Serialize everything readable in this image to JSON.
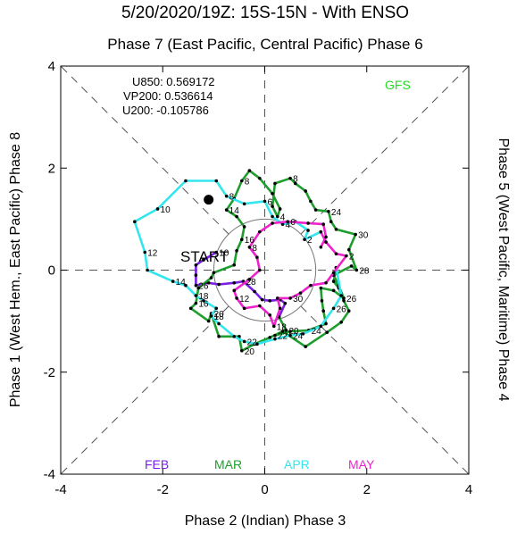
{
  "title": "5/20/2020/19Z: 15S-15N - With ENSO",
  "subtitle": "Phase 7 (East Pacific, Central Pacific) Phase 6",
  "xlabel": "Phase 2 (Indian) Phase 3",
  "ylabel_left": "Phase 1 (West Hem., East Pacific) Phase 8",
  "ylabel_right": "Phase 5 (West Pacific, Maritime) Phase 4",
  "stats": {
    "u850": "U850: 0.569172",
    "vp200": "VP200: 0.536614",
    "u200": "U200: -0.105786"
  },
  "model_label": "GFS",
  "start_label": "START",
  "colors": {
    "feb": "#7a1fe6",
    "mar": "#1e9e2e",
    "apr": "#33e6ee",
    "may": "#ee22cc",
    "forecast": "#22dd22"
  },
  "chart_data": {
    "type": "line",
    "xlim": [
      -4,
      4
    ],
    "ylim": [
      -4,
      4
    ],
    "xticks": [
      "-4",
      "-2",
      "0",
      "2",
      "4"
    ],
    "yticks": [
      "-4",
      "-2",
      "0",
      "2",
      "4"
    ],
    "unit_circle_radius": 1,
    "series": [
      {
        "name": "FEB",
        "points": [
          [
            -0.95,
            0.35,
            "10"
          ],
          [
            -1.2,
            0.2,
            ""
          ],
          [
            -1.35,
            0.1,
            ""
          ],
          [
            -1.35,
            -0.1,
            ""
          ],
          [
            -1.35,
            -0.3,
            "26"
          ],
          [
            -1.1,
            -0.25,
            ""
          ],
          [
            -0.9,
            -0.28,
            ""
          ],
          [
            -0.6,
            -0.25,
            ""
          ],
          [
            -0.42,
            -0.22,
            "28"
          ],
          [
            -0.2,
            -0.42,
            ""
          ],
          [
            -0.05,
            -0.58,
            ""
          ],
          [
            0.1,
            -0.6,
            ""
          ],
          [
            0.3,
            -0.58,
            ""
          ],
          [
            0.4,
            -0.65,
            ""
          ],
          [
            0.28,
            -0.92,
            ""
          ]
        ]
      },
      {
        "name": "MAR",
        "points": [
          [
            0.28,
            -0.92,
            ""
          ],
          [
            0.42,
            -1.18,
            "20"
          ],
          [
            0.2,
            -1.28,
            "22"
          ],
          [
            0.5,
            -1.2,
            ""
          ],
          [
            0.86,
            -1.18,
            "24"
          ],
          [
            1.2,
            -1.05,
            ""
          ],
          [
            1.15,
            -0.8,
            ""
          ],
          [
            1.12,
            -0.6,
            ""
          ],
          [
            1.1,
            -0.35,
            ""
          ],
          [
            1.35,
            -0.4,
            ""
          ],
          [
            1.55,
            -0.55,
            "26"
          ],
          [
            1.45,
            -0.3,
            ""
          ],
          [
            1.35,
            -0.1,
            ""
          ],
          [
            1.7,
            0.08,
            ""
          ],
          [
            1.8,
            0.0,
            "28"
          ],
          [
            1.65,
            0.4,
            ""
          ],
          [
            1.78,
            0.7,
            "30"
          ],
          [
            1.4,
            0.8,
            ""
          ],
          [
            1.3,
            0.95,
            ""
          ],
          [
            1.25,
            1.15,
            "24"
          ],
          [
            1.0,
            1.18,
            ""
          ],
          [
            0.9,
            1.35,
            ""
          ],
          [
            0.8,
            1.55,
            ""
          ],
          [
            0.6,
            1.7,
            ""
          ],
          [
            0.5,
            1.8,
            "8"
          ],
          [
            0.2,
            1.7,
            ""
          ],
          [
            0.15,
            1.25,
            ""
          ],
          [
            0.25,
            1.05,
            "4"
          ],
          [
            0.3,
            1.2,
            ""
          ],
          [
            0.15,
            1.5,
            ""
          ],
          [
            -0.1,
            1.8,
            ""
          ],
          [
            -0.3,
            1.95,
            ""
          ],
          [
            -0.45,
            1.75,
            "8"
          ],
          [
            -0.6,
            1.4,
            ""
          ],
          [
            -0.75,
            1.18,
            "14"
          ],
          [
            -0.55,
            1.05,
            ""
          ],
          [
            -0.4,
            0.85,
            ""
          ],
          [
            -0.45,
            0.6,
            "16"
          ],
          [
            -0.55,
            0.38,
            ""
          ],
          [
            -0.6,
            0.1,
            ""
          ],
          [
            -1.0,
            -0.05,
            ""
          ],
          [
            -1.05,
            -0.15,
            ""
          ],
          [
            -1.3,
            -0.35,
            ""
          ],
          [
            -1.35,
            -0.65,
            "16"
          ],
          [
            -1.45,
            -0.75,
            ""
          ],
          [
            -1.1,
            -1.0,
            ""
          ],
          [
            -1.05,
            -0.85,
            "20"
          ],
          [
            -0.9,
            -1.3,
            ""
          ],
          [
            -0.5,
            -1.3,
            ""
          ],
          [
            -0.45,
            -1.58,
            "20"
          ],
          [
            -0.2,
            -1.45,
            ""
          ],
          [
            0.1,
            -1.32,
            ""
          ],
          [
            0.35,
            -1.2,
            ""
          ],
          [
            0.8,
            -1.5,
            ""
          ],
          [
            1.22,
            -1.22,
            ""
          ],
          [
            1.5,
            -1.02,
            ""
          ],
          [
            1.65,
            -0.8,
            ""
          ],
          [
            1.55,
            -0.6,
            ""
          ],
          [
            1.45,
            -0.35,
            ""
          ],
          [
            1.35,
            -0.22,
            ""
          ],
          [
            1.4,
            0.05,
            ""
          ]
        ]
      },
      {
        "name": "APR",
        "points": [
          [
            1.4,
            0.05,
            ""
          ],
          [
            1.5,
            -0.5,
            ""
          ],
          [
            1.35,
            -0.75,
            "26"
          ],
          [
            1.1,
            -1.1,
            ""
          ],
          [
            0.75,
            -1.25,
            ""
          ],
          [
            0.5,
            -1.28,
            "24"
          ],
          [
            0.2,
            -1.35,
            ""
          ],
          [
            -0.15,
            -1.45,
            ""
          ],
          [
            -0.4,
            -1.4,
            "22"
          ],
          [
            -0.6,
            -1.3,
            ""
          ],
          [
            -0.9,
            -1.05,
            ""
          ],
          [
            -1.05,
            -0.9,
            "18"
          ],
          [
            -0.95,
            -0.75,
            ""
          ],
          [
            -1.2,
            -0.6,
            ""
          ],
          [
            -1.35,
            -0.5,
            "18"
          ],
          [
            -1.55,
            -0.3,
            ""
          ],
          [
            -1.8,
            -0.22,
            "14"
          ],
          [
            -2.3,
            0.0,
            ""
          ],
          [
            -2.35,
            0.35,
            "12"
          ],
          [
            -2.55,
            0.95,
            ""
          ],
          [
            -2.1,
            1.2,
            "10"
          ],
          [
            -1.55,
            1.75,
            ""
          ],
          [
            -0.95,
            1.75,
            ""
          ],
          [
            -0.75,
            1.45,
            "8"
          ],
          [
            -0.4,
            1.3,
            ""
          ],
          [
            0.0,
            1.35,
            "6"
          ],
          [
            0.15,
            1.05,
            ""
          ],
          [
            0.35,
            0.9,
            "4"
          ],
          [
            0.6,
            0.95,
            ""
          ],
          [
            0.85,
            0.78,
            ""
          ],
          [
            0.78,
            0.6,
            "2"
          ],
          [
            1.1,
            0.75,
            ""
          ]
        ]
      },
      {
        "name": "MAY",
        "points": [
          [
            1.1,
            0.75,
            ""
          ],
          [
            1.2,
            0.55,
            ""
          ],
          [
            1.4,
            0.32,
            ""
          ],
          [
            1.6,
            0.28,
            "2"
          ],
          [
            1.35,
            -0.05,
            ""
          ],
          [
            1.2,
            -0.25,
            ""
          ],
          [
            0.9,
            -0.3,
            ""
          ],
          [
            0.7,
            -0.45,
            ""
          ],
          [
            0.5,
            -0.55,
            "30"
          ],
          [
            0.25,
            -0.55,
            ""
          ],
          [
            0.3,
            -0.75,
            ""
          ],
          [
            0.18,
            -1.1,
            "18"
          ],
          [
            0.1,
            -0.88,
            ""
          ],
          [
            -0.1,
            -0.7,
            ""
          ],
          [
            -0.4,
            -0.75,
            ""
          ],
          [
            -0.55,
            -0.55,
            "12"
          ],
          [
            -0.6,
            -0.4,
            ""
          ],
          [
            -0.3,
            -0.18,
            ""
          ],
          [
            -0.1,
            0.0,
            ""
          ],
          [
            -0.15,
            0.25,
            ""
          ],
          [
            -0.3,
            0.45,
            "8"
          ],
          [
            -0.1,
            0.75,
            ""
          ],
          [
            0.15,
            0.92,
            ""
          ],
          [
            0.45,
            0.95,
            "6"
          ],
          [
            0.85,
            0.92,
            ""
          ],
          [
            1.15,
            0.9,
            ""
          ],
          [
            1.2,
            0.65,
            ""
          ],
          [
            1.1,
            0.45,
            ""
          ]
        ]
      }
    ],
    "start_point": [
      -1.6,
      0.15
    ],
    "end_point": [
      -1.1,
      1.38
    ],
    "months": [
      "FEB",
      "MAR",
      "APR",
      "MAY"
    ]
  }
}
